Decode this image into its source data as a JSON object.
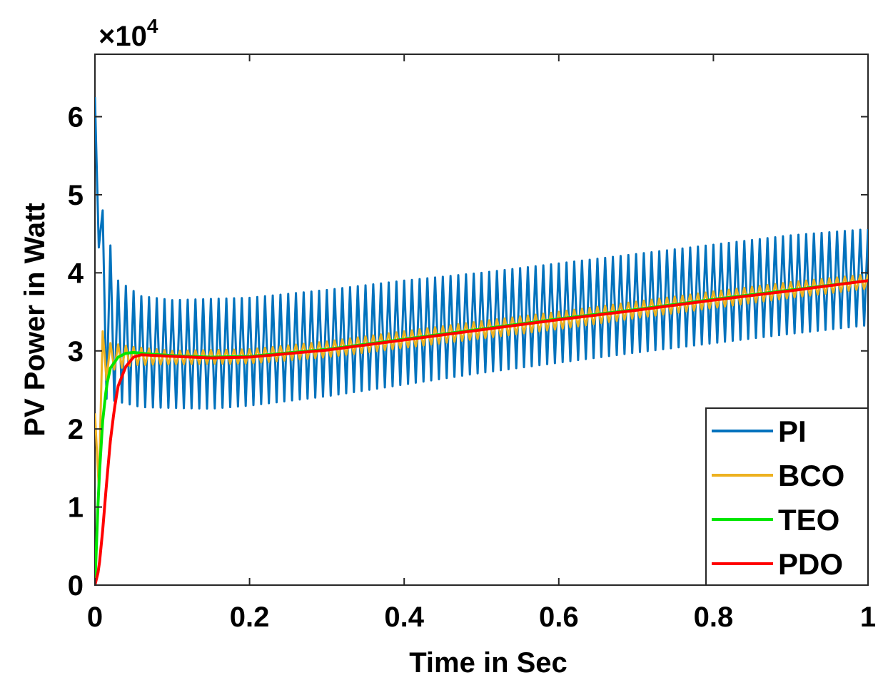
{
  "chart_data": {
    "type": "line",
    "title": "",
    "xlabel": "Time in Sec",
    "ylabel": "PV Power in Watt",
    "xlim": [
      0,
      1
    ],
    "ylim": [
      0,
      6.8
    ],
    "y_multiplier_label": "×10",
    "y_multiplier_exponent": "4",
    "xticks": [
      0,
      0.2,
      0.4,
      0.6,
      0.8,
      1
    ],
    "xtick_labels": [
      "0",
      "0.2",
      "0.4",
      "0.6",
      "0.8",
      "1"
    ],
    "yticks": [
      0,
      1,
      2,
      3,
      4,
      5,
      6
    ],
    "ytick_labels": [
      "0",
      "1",
      "2",
      "3",
      "4",
      "5",
      "6"
    ],
    "legend_position": "bottom-right",
    "series": [
      {
        "name": "PI",
        "color": "#0072BD",
        "style": "oscillating",
        "oscillation_cycles": 100,
        "upper_envelope": [
          [
            0,
            6.25
          ],
          [
            0.01,
            4.8
          ],
          [
            0.03,
            3.9
          ],
          [
            0.06,
            3.7
          ],
          [
            0.1,
            3.65
          ],
          [
            0.2,
            3.68
          ],
          [
            0.3,
            3.78
          ],
          [
            0.4,
            3.9
          ],
          [
            0.5,
            4.0
          ],
          [
            0.6,
            4.12
          ],
          [
            0.7,
            4.24
          ],
          [
            0.8,
            4.36
          ],
          [
            0.9,
            4.48
          ],
          [
            1.0,
            4.56
          ]
        ],
        "lower_envelope": [
          [
            0,
            6.25
          ],
          [
            0.01,
            2.4
          ],
          [
            0.03,
            2.35
          ],
          [
            0.06,
            2.28
          ],
          [
            0.1,
            2.27
          ],
          [
            0.15,
            2.26
          ],
          [
            0.2,
            2.3
          ],
          [
            0.3,
            2.42
          ],
          [
            0.4,
            2.57
          ],
          [
            0.5,
            2.72
          ],
          [
            0.6,
            2.85
          ],
          [
            0.7,
            2.98
          ],
          [
            0.8,
            3.1
          ],
          [
            0.9,
            3.22
          ],
          [
            1.0,
            3.33
          ]
        ]
      },
      {
        "name": "BCO",
        "color": "#EDB120",
        "style": "oscillating",
        "oscillation_cycles": 100,
        "upper_envelope": [
          [
            0,
            2.2
          ],
          [
            0.01,
            3.25
          ],
          [
            0.02,
            3.1
          ],
          [
            0.05,
            3.05
          ],
          [
            0.1,
            3.0
          ],
          [
            0.2,
            3.02
          ],
          [
            0.3,
            3.12
          ],
          [
            0.4,
            3.25
          ],
          [
            0.5,
            3.38
          ],
          [
            0.6,
            3.5
          ],
          [
            0.7,
            3.63
          ],
          [
            0.8,
            3.76
          ],
          [
            0.9,
            3.88
          ],
          [
            1.0,
            3.98
          ]
        ],
        "lower_envelope": [
          [
            0,
            0.0
          ],
          [
            0.01,
            2.5
          ],
          [
            0.02,
            2.75
          ],
          [
            0.05,
            2.82
          ],
          [
            0.1,
            2.83
          ],
          [
            0.2,
            2.84
          ],
          [
            0.3,
            2.92
          ],
          [
            0.4,
            3.04
          ],
          [
            0.5,
            3.16
          ],
          [
            0.6,
            3.28
          ],
          [
            0.7,
            3.42
          ],
          [
            0.8,
            3.55
          ],
          [
            0.9,
            3.68
          ],
          [
            1.0,
            3.8
          ]
        ]
      },
      {
        "name": "TEO",
        "color": "#00E600",
        "style": "smooth",
        "points": [
          [
            0,
            0
          ],
          [
            0.005,
            1.3
          ],
          [
            0.01,
            2.1
          ],
          [
            0.015,
            2.55
          ],
          [
            0.02,
            2.78
          ],
          [
            0.03,
            2.92
          ],
          [
            0.04,
            2.97
          ],
          [
            0.05,
            2.98
          ],
          [
            0.07,
            2.96
          ],
          [
            0.1,
            2.94
          ],
          [
            0.15,
            2.92
          ],
          [
            0.2,
            2.93
          ],
          [
            0.3,
            3.02
          ],
          [
            0.4,
            3.15
          ],
          [
            0.5,
            3.28
          ],
          [
            0.6,
            3.41
          ],
          [
            0.7,
            3.53
          ],
          [
            0.8,
            3.66
          ],
          [
            0.9,
            3.78
          ],
          [
            1.0,
            3.9
          ]
        ]
      },
      {
        "name": "PDO",
        "color": "#FF0000",
        "style": "smooth",
        "points": [
          [
            0,
            0
          ],
          [
            0.005,
            0.2
          ],
          [
            0.01,
            0.7
          ],
          [
            0.015,
            1.3
          ],
          [
            0.02,
            1.85
          ],
          [
            0.025,
            2.25
          ],
          [
            0.03,
            2.55
          ],
          [
            0.04,
            2.8
          ],
          [
            0.05,
            2.92
          ],
          [
            0.06,
            2.95
          ],
          [
            0.08,
            2.94
          ],
          [
            0.1,
            2.93
          ],
          [
            0.15,
            2.91
          ],
          [
            0.2,
            2.92
          ],
          [
            0.3,
            3.01
          ],
          [
            0.4,
            3.14
          ],
          [
            0.5,
            3.27
          ],
          [
            0.6,
            3.4
          ],
          [
            0.7,
            3.52
          ],
          [
            0.8,
            3.65
          ],
          [
            0.9,
            3.77
          ],
          [
            1.0,
            3.9
          ]
        ]
      }
    ]
  }
}
